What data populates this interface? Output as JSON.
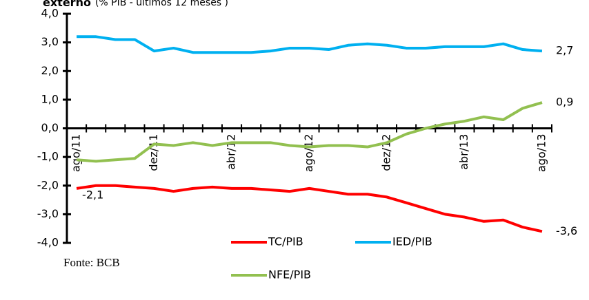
{
  "chart_data": {
    "type": "line",
    "title": "externo",
    "subtitle": "(% PIB - últimos 12 meses )",
    "source": "Fonte: BCB",
    "categories": [
      "ago/11",
      null,
      null,
      null,
      "dez/11",
      null,
      null,
      null,
      "abr/12",
      null,
      null,
      null,
      "ago/12",
      null,
      null,
      null,
      "dez/12",
      null,
      null,
      null,
      "abr/13",
      null,
      null,
      null,
      "ago/13"
    ],
    "series": [
      {
        "name": "TC/PIB",
        "color": "#ff0000",
        "values": [
          -2.1,
          -2.0,
          -2.0,
          -2.05,
          -2.1,
          -2.2,
          -2.1,
          -2.05,
          -2.1,
          -2.1,
          -2.15,
          -2.2,
          -2.1,
          -2.2,
          -2.3,
          -2.3,
          -2.4,
          -2.6,
          -2.8,
          -3.0,
          -3.1,
          -3.25,
          -3.2,
          -3.45,
          -3.6
        ],
        "value_labels": [
          "-2,1",
          null,
          null,
          null,
          null,
          null,
          null,
          null,
          null,
          null,
          null,
          null,
          null,
          null,
          null,
          null,
          null,
          null,
          null,
          null,
          null,
          null,
          null,
          null,
          "-3,6"
        ]
      },
      {
        "name": "IED/PIB",
        "color": "#00b0f0",
        "values": [
          3.2,
          3.2,
          3.1,
          3.1,
          2.7,
          2.8,
          2.65,
          2.65,
          2.65,
          2.65,
          2.7,
          2.8,
          2.8,
          2.75,
          2.9,
          2.95,
          2.9,
          2.8,
          2.8,
          2.85,
          2.85,
          2.85,
          2.95,
          2.75,
          2.7
        ],
        "value_labels": [
          null,
          null,
          null,
          null,
          null,
          null,
          null,
          null,
          null,
          null,
          null,
          null,
          null,
          null,
          null,
          null,
          null,
          null,
          null,
          null,
          null,
          null,
          null,
          null,
          "2,7"
        ]
      },
      {
        "name": "NFE/PIB",
        "color": "#92c050",
        "values": [
          -1.1,
          -1.15,
          -1.1,
          -1.05,
          -0.55,
          -0.6,
          -0.5,
          -0.6,
          -0.5,
          -0.5,
          -0.5,
          -0.6,
          -0.65,
          -0.6,
          -0.6,
          -0.65,
          -0.5,
          -0.2,
          0.0,
          0.15,
          0.25,
          0.4,
          0.3,
          0.7,
          0.9
        ],
        "value_labels": [
          null,
          null,
          null,
          null,
          null,
          null,
          null,
          null,
          null,
          null,
          null,
          null,
          null,
          null,
          null,
          null,
          null,
          null,
          null,
          null,
          null,
          null,
          null,
          null,
          "0,9"
        ]
      }
    ],
    "ylim": [
      -4,
      4
    ],
    "yticks": [
      {
        "value": -4,
        "label": "-4,0"
      },
      {
        "value": -3,
        "label": "-3,0"
      },
      {
        "value": -2,
        "label": "-2,0"
      },
      {
        "value": -1,
        "label": "-1,0"
      },
      {
        "value": 0,
        "label": "0,0"
      },
      {
        "value": 1,
        "label": "1,0"
      },
      {
        "value": 2,
        "label": "2,0"
      },
      {
        "value": 3,
        "label": "3,0"
      },
      {
        "value": 4,
        "label": "4,0"
      }
    ]
  }
}
